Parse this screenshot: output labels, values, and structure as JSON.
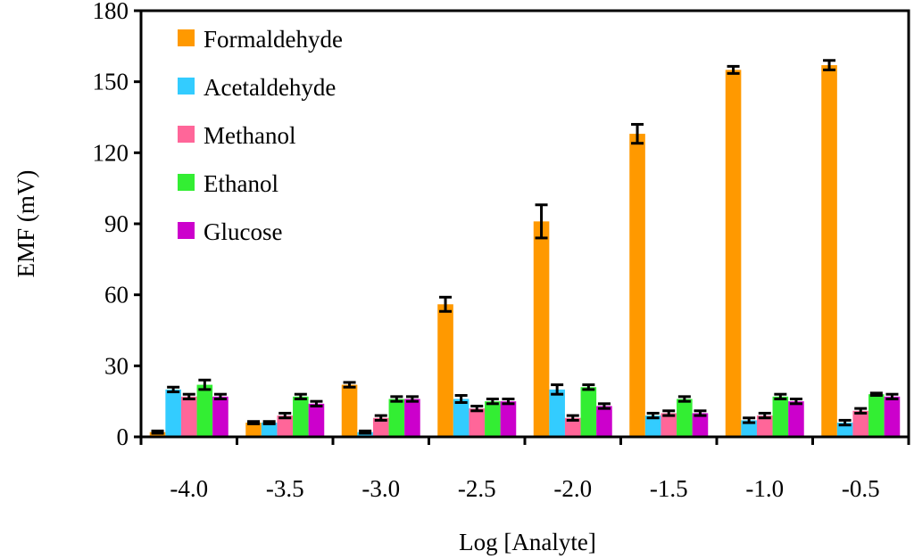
{
  "chart_data": {
    "type": "bar",
    "title": "",
    "xlabel": "Log [Analyte]",
    "ylabel": "EMF (mV)",
    "ylim": [
      0,
      180
    ],
    "yticks": [
      0,
      30,
      60,
      90,
      120,
      150,
      180
    ],
    "categories": [
      "-4.0",
      "-3.5",
      "-3.0",
      "-2.5",
      "-2.0",
      "-1.5",
      "-1.0",
      "-0.5"
    ],
    "legend_position": "top-left",
    "grid": false,
    "series": [
      {
        "name": "Formaldehyde",
        "color": "#FF9900",
        "values": [
          2,
          6,
          22,
          56,
          91,
          128,
          155,
          157
        ],
        "errors": [
          0.5,
          0.5,
          1,
          3,
          7,
          4,
          1.5,
          2
        ]
      },
      {
        "name": "Acetaldehyde",
        "color": "#33CCFF",
        "values": [
          20,
          6,
          2,
          16,
          20,
          9,
          7,
          6
        ],
        "errors": [
          1,
          0.5,
          0.5,
          1.5,
          2,
          1,
          1,
          1
        ]
      },
      {
        "name": "Methanol",
        "color": "#FF6699",
        "values": [
          17,
          9,
          8,
          12,
          8,
          10,
          9,
          11
        ],
        "errors": [
          1,
          1,
          1,
          1,
          1,
          1,
          1,
          1
        ]
      },
      {
        "name": "Ethanol",
        "color": "#33EE33",
        "values": [
          22,
          17,
          16,
          15,
          21,
          16,
          17,
          18
        ],
        "errors": [
          2,
          1,
          1,
          1,
          1,
          1,
          1,
          0.5
        ]
      },
      {
        "name": "Glucose",
        "color": "#CC00CC",
        "values": [
          17,
          14,
          16,
          15,
          13,
          10,
          15,
          17
        ],
        "errors": [
          1,
          1,
          1,
          1,
          1,
          1,
          1,
          1
        ]
      }
    ]
  }
}
